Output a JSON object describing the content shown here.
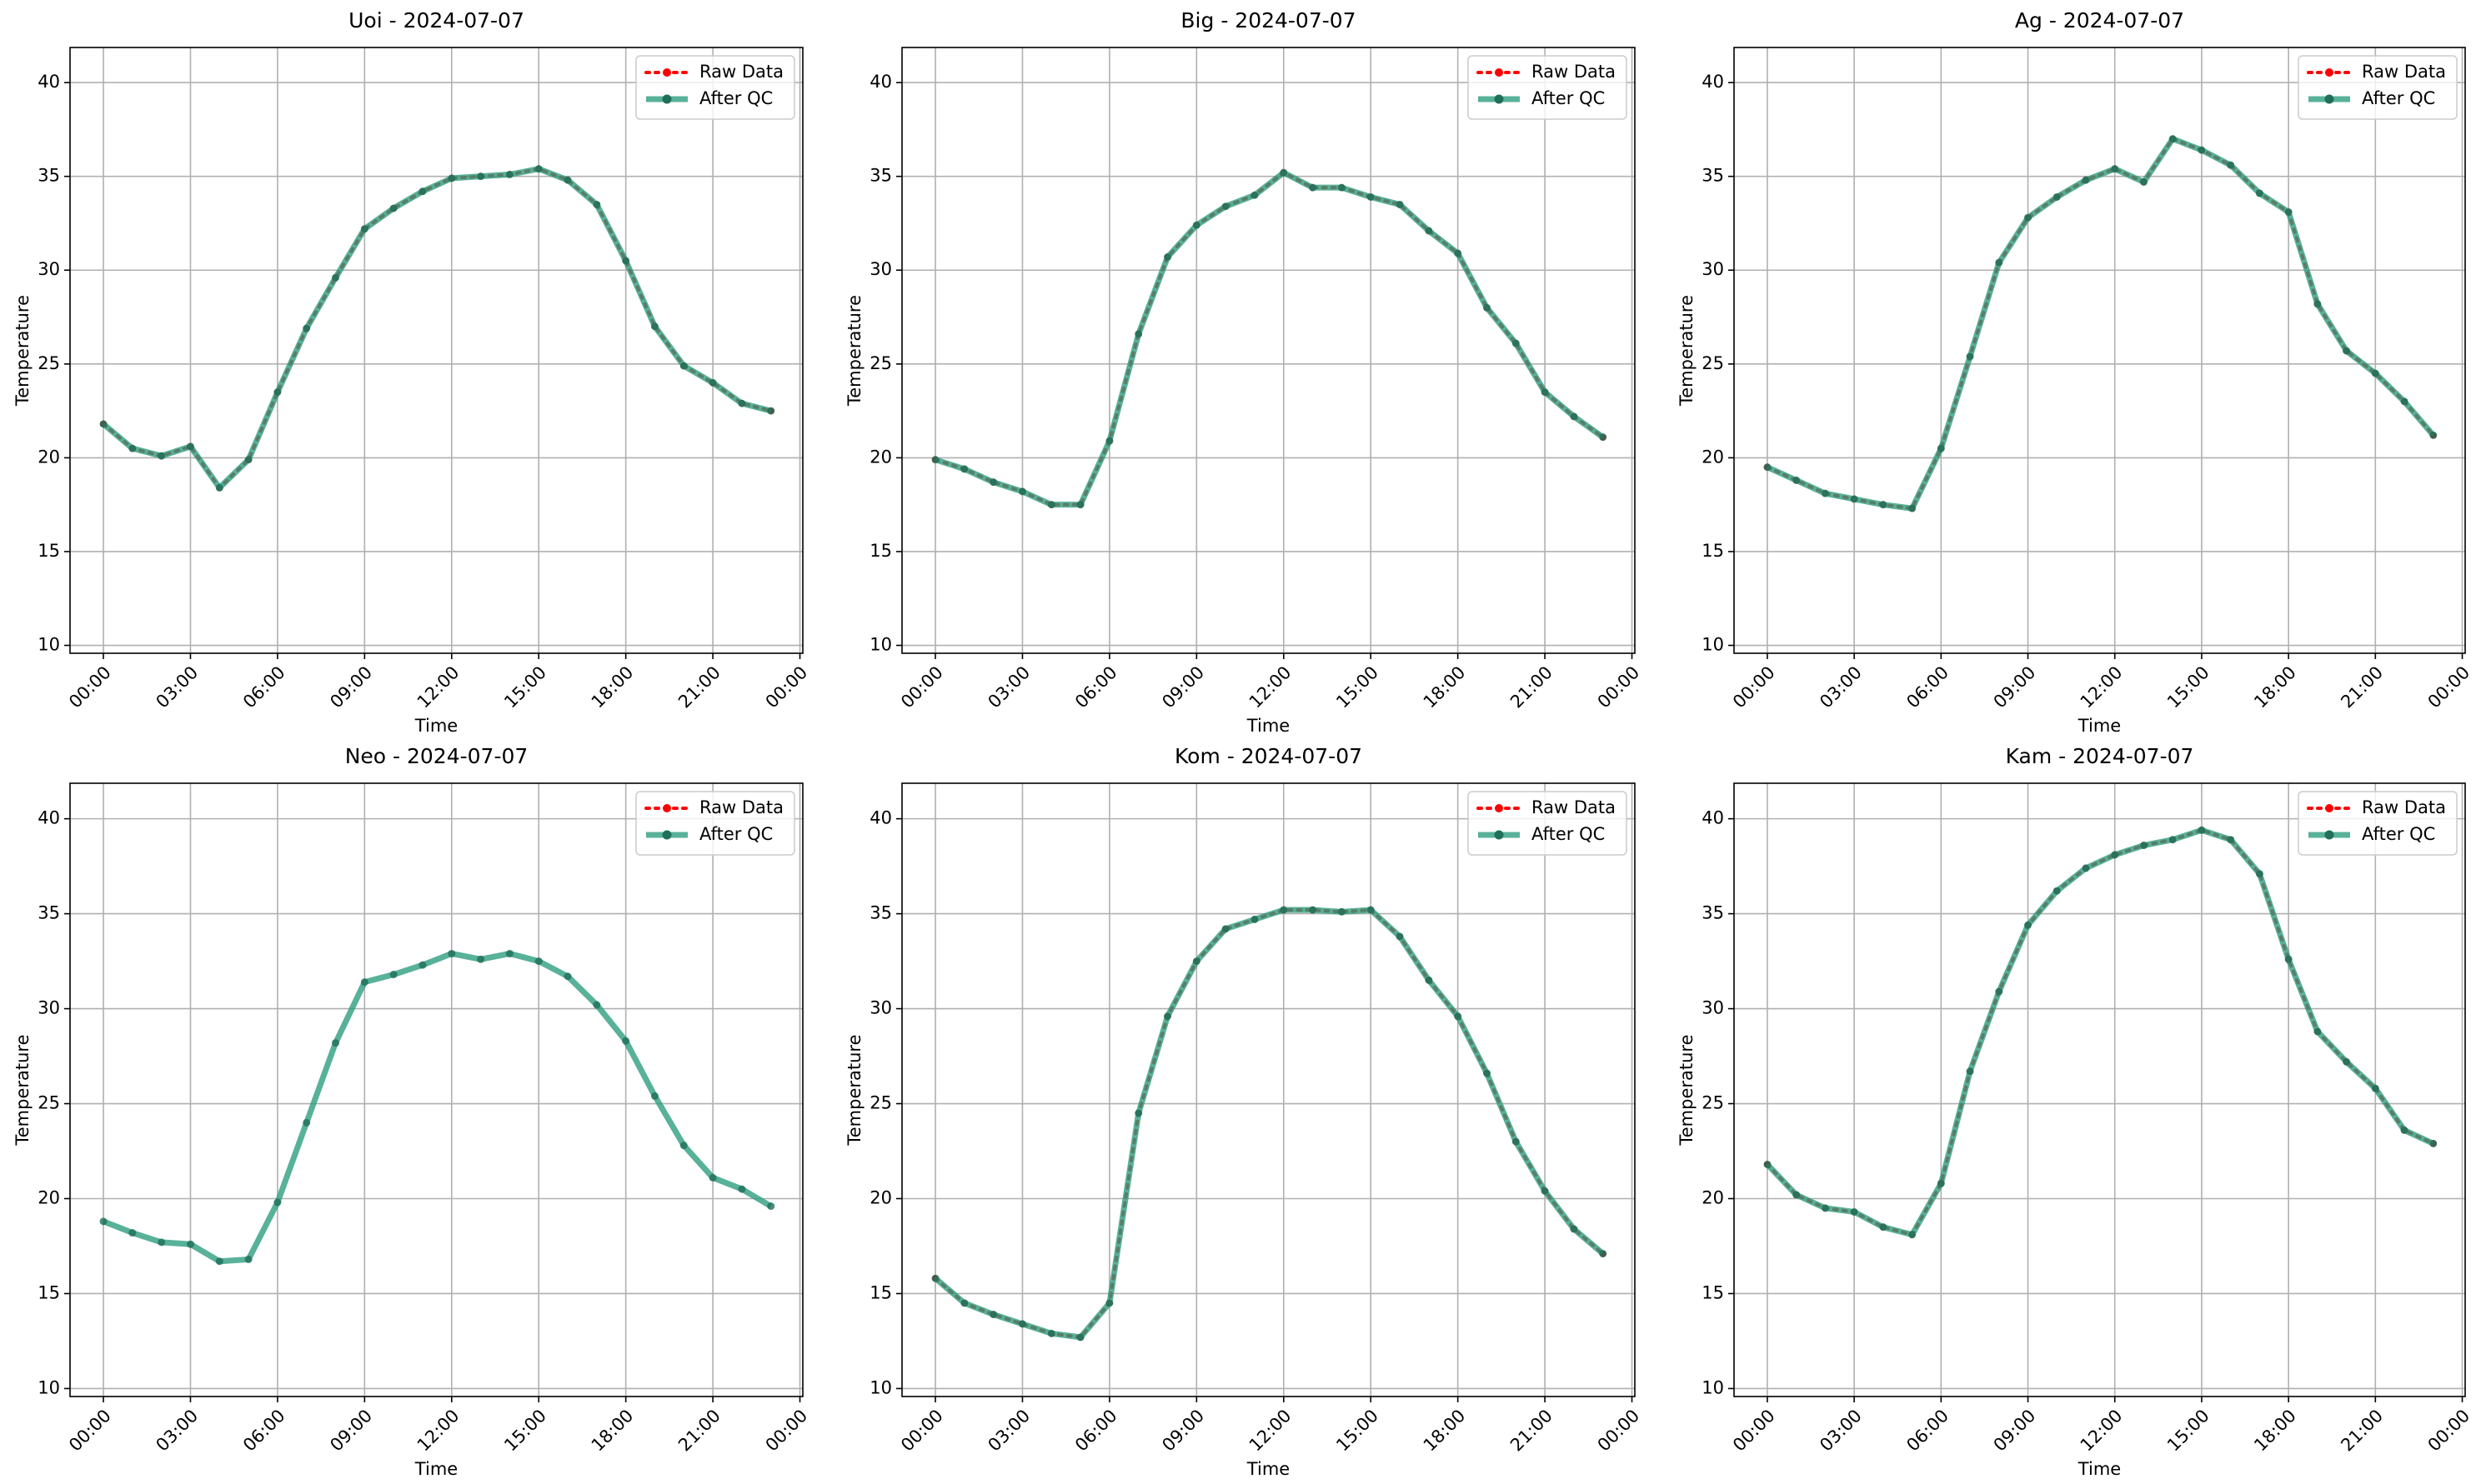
{
  "chart_data": [
    {
      "type": "line",
      "title": "Uoi - 2024-07-07",
      "xlabel": "Time",
      "ylabel": "Temperature",
      "x": [
        0,
        1,
        2,
        3,
        4,
        5,
        6,
        7,
        8,
        9,
        10,
        11,
        12,
        13,
        14,
        15,
        16,
        17,
        18,
        19,
        20,
        21,
        22,
        23
      ],
      "xlim": [
        -1.15,
        24.1
      ],
      "xticks": [
        {
          "value": 0,
          "label": "00:00"
        },
        {
          "value": 3,
          "label": "03:00"
        },
        {
          "value": 6,
          "label": "06:00"
        },
        {
          "value": 9,
          "label": "09:00"
        },
        {
          "value": 12,
          "label": "12:00"
        },
        {
          "value": 15,
          "label": "15:00"
        },
        {
          "value": 18,
          "label": "18:00"
        },
        {
          "value": 21,
          "label": "21:00"
        },
        {
          "value": 24,
          "label": "00:00"
        }
      ],
      "ylim": [
        9.58,
        41.87
      ],
      "yticks": [
        10,
        15,
        20,
        25,
        30,
        35,
        40
      ],
      "grid": true,
      "legend": "upper right",
      "series": [
        {
          "name": "Raw Data",
          "color": "#ff0000",
          "values": [
            21.8,
            20.5,
            20.1,
            20.6,
            18.4,
            19.9,
            23.5,
            26.9,
            29.6,
            32.2,
            33.3,
            34.2,
            34.9,
            35.0,
            35.1,
            35.4,
            34.8,
            33.5,
            30.5,
            27.0,
            24.9,
            24.0,
            22.9,
            22.5
          ]
        },
        {
          "name": "After QC",
          "color": "#2e9e80",
          "values": [
            21.8,
            20.5,
            20.1,
            20.6,
            18.4,
            19.9,
            23.5,
            26.9,
            29.6,
            32.2,
            33.3,
            34.2,
            34.9,
            35.0,
            35.1,
            35.4,
            34.8,
            33.5,
            30.5,
            27.0,
            24.9,
            24.0,
            22.9,
            22.5
          ]
        }
      ]
    },
    {
      "type": "line",
      "title": "Big - 2024-07-07",
      "xlabel": "Time",
      "ylabel": "Temperature",
      "x": [
        0,
        1,
        2,
        3,
        4,
        5,
        6,
        7,
        8,
        9,
        10,
        11,
        12,
        13,
        14,
        15,
        16,
        17,
        18,
        19,
        20,
        21,
        22,
        23
      ],
      "xlim": [
        -1.15,
        24.1
      ],
      "xticks": [
        {
          "value": 0,
          "label": "00:00"
        },
        {
          "value": 3,
          "label": "03:00"
        },
        {
          "value": 6,
          "label": "06:00"
        },
        {
          "value": 9,
          "label": "09:00"
        },
        {
          "value": 12,
          "label": "12:00"
        },
        {
          "value": 15,
          "label": "15:00"
        },
        {
          "value": 18,
          "label": "18:00"
        },
        {
          "value": 21,
          "label": "21:00"
        },
        {
          "value": 24,
          "label": "00:00"
        }
      ],
      "ylim": [
        9.58,
        41.87
      ],
      "yticks": [
        10,
        15,
        20,
        25,
        30,
        35,
        40
      ],
      "grid": true,
      "legend": "upper right",
      "series": [
        {
          "name": "Raw Data",
          "color": "#ff0000",
          "values": [
            19.9,
            19.4,
            18.7,
            18.2,
            17.5,
            17.5,
            20.9,
            26.6,
            30.7,
            32.4,
            33.4,
            34.0,
            35.2,
            34.4,
            34.4,
            33.9,
            33.5,
            32.1,
            30.9,
            28.0,
            26.1,
            23.5,
            22.2,
            21.1
          ]
        },
        {
          "name": "After QC",
          "color": "#2e9e80",
          "values": [
            19.9,
            19.4,
            18.7,
            18.2,
            17.5,
            17.5,
            20.9,
            26.6,
            30.7,
            32.4,
            33.4,
            34.0,
            35.2,
            34.4,
            34.4,
            33.9,
            33.5,
            32.1,
            30.9,
            28.0,
            26.1,
            23.5,
            22.2,
            21.1
          ]
        }
      ]
    },
    {
      "type": "line",
      "title": "Ag - 2024-07-07",
      "xlabel": "Time",
      "ylabel": "Temperature",
      "x": [
        0,
        1,
        2,
        3,
        4,
        5,
        6,
        7,
        8,
        9,
        10,
        11,
        12,
        13,
        14,
        15,
        16,
        17,
        18,
        19,
        20,
        21,
        22,
        23
      ],
      "xlim": [
        -1.15,
        24.1
      ],
      "xticks": [
        {
          "value": 0,
          "label": "00:00"
        },
        {
          "value": 3,
          "label": "03:00"
        },
        {
          "value": 6,
          "label": "06:00"
        },
        {
          "value": 9,
          "label": "09:00"
        },
        {
          "value": 12,
          "label": "12:00"
        },
        {
          "value": 15,
          "label": "15:00"
        },
        {
          "value": 18,
          "label": "18:00"
        },
        {
          "value": 21,
          "label": "21:00"
        },
        {
          "value": 24,
          "label": "00:00"
        }
      ],
      "ylim": [
        9.58,
        41.87
      ],
      "yticks": [
        10,
        15,
        20,
        25,
        30,
        35,
        40
      ],
      "grid": true,
      "legend": "upper right",
      "series": [
        {
          "name": "Raw Data",
          "color": "#ff0000",
          "values": [
            19.5,
            18.8,
            18.1,
            17.8,
            17.5,
            17.3,
            20.5,
            25.4,
            30.4,
            32.8,
            33.9,
            34.8,
            35.4,
            34.7,
            37.0,
            36.4,
            35.6,
            34.1,
            33.1,
            28.2,
            25.7,
            24.5,
            23.0,
            21.2
          ]
        },
        {
          "name": "After QC",
          "color": "#2e9e80",
          "values": [
            19.5,
            18.8,
            18.1,
            17.8,
            17.5,
            17.3,
            20.5,
            25.4,
            30.4,
            32.8,
            33.9,
            34.8,
            35.4,
            34.7,
            37.0,
            36.4,
            35.6,
            34.1,
            33.1,
            28.2,
            25.7,
            24.5,
            23.0,
            21.2
          ]
        }
      ]
    },
    {
      "type": "line",
      "title": "Neo - 2024-07-07",
      "xlabel": "Time",
      "ylabel": "Temperature",
      "x": [
        0,
        1,
        2,
        3,
        4,
        5,
        6,
        7,
        8,
        9,
        10,
        11,
        12,
        13,
        14,
        15,
        16,
        17,
        18,
        19,
        20,
        21,
        22,
        23
      ],
      "xlim": [
        -1.15,
        24.1
      ],
      "xticks": [
        {
          "value": 0,
          "label": "00:00"
        },
        {
          "value": 3,
          "label": "03:00"
        },
        {
          "value": 6,
          "label": "06:00"
        },
        {
          "value": 9,
          "label": "09:00"
        },
        {
          "value": 12,
          "label": "12:00"
        },
        {
          "value": 15,
          "label": "15:00"
        },
        {
          "value": 18,
          "label": "18:00"
        },
        {
          "value": 21,
          "label": "21:00"
        },
        {
          "value": 24,
          "label": "00:00"
        }
      ],
      "ylim": [
        9.58,
        41.87
      ],
      "yticks": [
        10,
        15,
        20,
        25,
        30,
        35,
        40
      ],
      "grid": true,
      "legend": "upper right",
      "series": [
        {
          "name": "Raw Data",
          "color": "#ff0000",
          "values": [
            null,
            null,
            null,
            null,
            null,
            null,
            null,
            null,
            null,
            null,
            null,
            null,
            null,
            null,
            null,
            null,
            null,
            null,
            null,
            null,
            null,
            null,
            null,
            null
          ]
        },
        {
          "name": "After QC",
          "color": "#2e9e80",
          "values": [
            18.8,
            18.2,
            17.7,
            17.6,
            16.7,
            16.8,
            19.8,
            24.0,
            28.2,
            31.4,
            31.8,
            32.3,
            32.9,
            32.6,
            32.9,
            32.5,
            31.7,
            30.2,
            28.3,
            25.4,
            22.8,
            21.1,
            20.5,
            19.6
          ]
        }
      ]
    },
    {
      "type": "line",
      "title": "Kom - 2024-07-07",
      "xlabel": "Time",
      "ylabel": "Temperature",
      "x": [
        0,
        1,
        2,
        3,
        4,
        5,
        6,
        7,
        8,
        9,
        10,
        11,
        12,
        13,
        14,
        15,
        16,
        17,
        18,
        19,
        20,
        21,
        22,
        23
      ],
      "xlim": [
        -1.15,
        24.1
      ],
      "xticks": [
        {
          "value": 0,
          "label": "00:00"
        },
        {
          "value": 3,
          "label": "03:00"
        },
        {
          "value": 6,
          "label": "06:00"
        },
        {
          "value": 9,
          "label": "09:00"
        },
        {
          "value": 12,
          "label": "12:00"
        },
        {
          "value": 15,
          "label": "15:00"
        },
        {
          "value": 18,
          "label": "18:00"
        },
        {
          "value": 21,
          "label": "21:00"
        },
        {
          "value": 24,
          "label": "00:00"
        }
      ],
      "ylim": [
        9.58,
        41.87
      ],
      "yticks": [
        10,
        15,
        20,
        25,
        30,
        35,
        40
      ],
      "grid": true,
      "legend": "upper right",
      "series": [
        {
          "name": "Raw Data",
          "color": "#ff0000",
          "values": [
            15.8,
            14.5,
            13.9,
            13.4,
            12.9,
            12.7,
            14.5,
            24.5,
            29.6,
            32.5,
            34.2,
            34.7,
            35.2,
            35.2,
            35.1,
            35.2,
            33.8,
            31.5,
            29.6,
            26.6,
            23.0,
            20.4,
            18.4,
            17.1
          ]
        },
        {
          "name": "After QC",
          "color": "#2e9e80",
          "values": [
            15.8,
            14.5,
            13.9,
            13.4,
            12.9,
            12.7,
            14.5,
            24.5,
            29.6,
            32.5,
            34.2,
            34.7,
            35.2,
            35.2,
            35.1,
            35.2,
            33.8,
            31.5,
            29.6,
            26.6,
            23.0,
            20.4,
            18.4,
            17.1
          ]
        }
      ]
    },
    {
      "type": "line",
      "title": "Kam - 2024-07-07",
      "xlabel": "Time",
      "ylabel": "Temperature",
      "x": [
        0,
        1,
        2,
        3,
        4,
        5,
        6,
        7,
        8,
        9,
        10,
        11,
        12,
        13,
        14,
        15,
        16,
        17,
        18,
        19,
        20,
        21,
        22,
        23
      ],
      "xlim": [
        -1.15,
        24.1
      ],
      "xticks": [
        {
          "value": 0,
          "label": "00:00"
        },
        {
          "value": 3,
          "label": "03:00"
        },
        {
          "value": 6,
          "label": "06:00"
        },
        {
          "value": 9,
          "label": "09:00"
        },
        {
          "value": 12,
          "label": "12:00"
        },
        {
          "value": 15,
          "label": "15:00"
        },
        {
          "value": 18,
          "label": "18:00"
        },
        {
          "value": 21,
          "label": "21:00"
        },
        {
          "value": 24,
          "label": "00:00"
        }
      ],
      "ylim": [
        9.58,
        41.87
      ],
      "yticks": [
        10,
        15,
        20,
        25,
        30,
        35,
        40
      ],
      "grid": true,
      "legend": "upper right",
      "series": [
        {
          "name": "Raw Data",
          "color": "#ff0000",
          "values": [
            21.8,
            20.2,
            19.5,
            19.3,
            18.5,
            18.1,
            20.8,
            26.7,
            30.9,
            34.4,
            36.2,
            37.4,
            38.1,
            38.6,
            38.9,
            39.4,
            38.9,
            37.1,
            32.6,
            28.8,
            27.2,
            25.8,
            23.6,
            22.9
          ]
        },
        {
          "name": "After QC",
          "color": "#2e9e80",
          "values": [
            21.8,
            20.2,
            19.5,
            19.3,
            18.5,
            18.1,
            20.8,
            26.7,
            30.9,
            34.4,
            36.2,
            37.4,
            38.1,
            38.6,
            38.9,
            39.4,
            38.9,
            37.1,
            32.6,
            28.8,
            27.2,
            25.8,
            23.6,
            22.9
          ]
        }
      ]
    }
  ]
}
